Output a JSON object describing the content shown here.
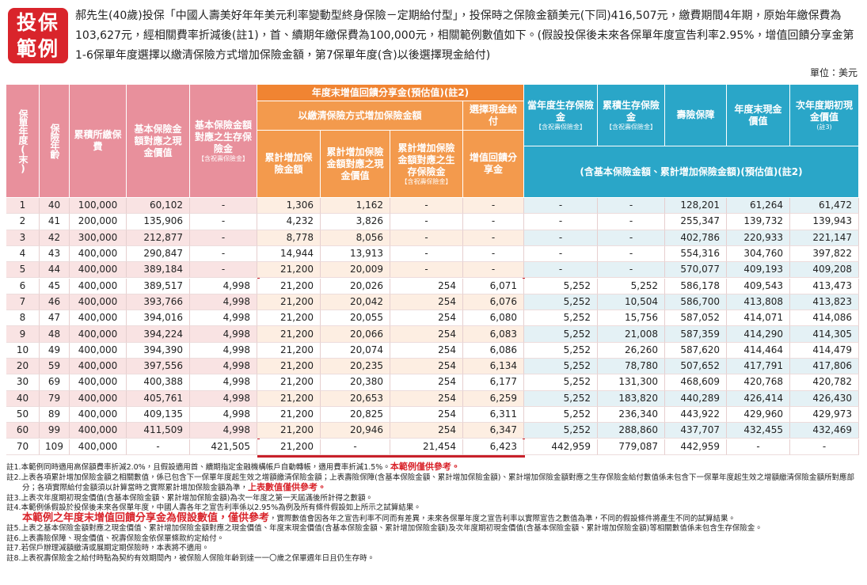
{
  "header": {
    "badge": [
      "投保",
      "範例"
    ],
    "intro": "郝先生(40歲)投保「中國人壽美好年年美元利率變動型終身保險－定期給付型」，投保時之保險金額美元(下同)416,507元，繳費期間4年期，原始年繳保費為103,627元，經相關費率折減後(註1)，首、續期年繳保費為100,000元，相關範例數值如下。(假設投保後未來各保單年度宣告利率2.95%，增值回饋分享金第1-6保單年度選擇以繳清保險方式增加保險金額，第7保單年度(含)以後選擇現金給付)",
    "unit": "單位：美元"
  },
  "table": {
    "group_header": "年度末增值回饋分享金(預估值)(註2)",
    "subgroups": [
      "以繳清保險方式增加保險金額",
      "選擇現金給付"
    ],
    "right_note": "(含基本保險金額、累計增加保險金額)(預估值)(註2)",
    "columns": [
      {
        "label": "保單年度(末)"
      },
      {
        "label": "保險年齡"
      },
      {
        "label": "累積所繳保費"
      },
      {
        "label": "基本保險金額對應之現金價值"
      },
      {
        "label": "基本保險金額對應之生存保險金",
        "note": "【含祝壽保險金】"
      },
      {
        "label": "累計增加保險金額"
      },
      {
        "label": "累計增加保險金額對應之現金價值"
      },
      {
        "label": "累計增加保險金額對應之生存保險金",
        "note": "【含祝壽保險金】"
      },
      {
        "label": "增值回饋分享金"
      },
      {
        "label": "當年度生存保險金",
        "note": "【含祝壽保險金】"
      },
      {
        "label": "累積生存保險金",
        "note": "【含祝壽保險金】"
      },
      {
        "label": "壽險保障"
      },
      {
        "label": "年度末現金價值"
      },
      {
        "label": "次年度期初現金價值",
        "note": "(註3)"
      }
    ],
    "rows": [
      [
        "1",
        "40",
        "100,000",
        "60,102",
        "-",
        "1,306",
        "1,162",
        "-",
        "-",
        "-",
        "-",
        "128,201",
        "61,264",
        "61,472"
      ],
      [
        "2",
        "41",
        "200,000",
        "135,906",
        "-",
        "4,232",
        "3,826",
        "-",
        "-",
        "-",
        "-",
        "255,347",
        "139,732",
        "139,943"
      ],
      [
        "3",
        "42",
        "300,000",
        "212,877",
        "-",
        "8,778",
        "8,056",
        "-",
        "-",
        "-",
        "-",
        "402,786",
        "220,933",
        "221,147"
      ],
      [
        "4",
        "43",
        "400,000",
        "290,847",
        "-",
        "14,944",
        "13,913",
        "-",
        "-",
        "-",
        "-",
        "554,316",
        "304,760",
        "397,822"
      ],
      [
        "5",
        "44",
        "400,000",
        "389,184",
        "-",
        "21,200",
        "20,009",
        "-",
        "-",
        "-",
        "-",
        "570,077",
        "409,193",
        "409,208"
      ],
      [
        "6",
        "45",
        "400,000",
        "389,517",
        "4,998",
        "21,200",
        "20,026",
        "254",
        "6,071",
        "5,252",
        "5,252",
        "586,178",
        "409,543",
        "413,473"
      ],
      [
        "7",
        "46",
        "400,000",
        "393,766",
        "4,998",
        "21,200",
        "20,042",
        "254",
        "6,076",
        "5,252",
        "10,504",
        "586,700",
        "413,808",
        "413,823"
      ],
      [
        "8",
        "47",
        "400,000",
        "394,016",
        "4,998",
        "21,200",
        "20,055",
        "254",
        "6,080",
        "5,252",
        "15,756",
        "587,052",
        "414,071",
        "414,086"
      ],
      [
        "9",
        "48",
        "400,000",
        "394,224",
        "4,998",
        "21,200",
        "20,066",
        "254",
        "6,083",
        "5,252",
        "21,008",
        "587,359",
        "414,290",
        "414,305"
      ],
      [
        "10",
        "49",
        "400,000",
        "394,390",
        "4,998",
        "21,200",
        "20,074",
        "254",
        "6,086",
        "5,252",
        "26,260",
        "587,620",
        "414,464",
        "414,479"
      ],
      [
        "20",
        "59",
        "400,000",
        "397,556",
        "4,998",
        "21,200",
        "20,235",
        "254",
        "6,134",
        "5,252",
        "78,780",
        "507,652",
        "417,791",
        "417,806"
      ],
      [
        "30",
        "69",
        "400,000",
        "400,388",
        "4,998",
        "21,200",
        "20,380",
        "254",
        "6,177",
        "5,252",
        "131,300",
        "468,609",
        "420,768",
        "420,782"
      ],
      [
        "40",
        "79",
        "400,000",
        "405,761",
        "4,998",
        "21,200",
        "20,653",
        "254",
        "6,259",
        "5,252",
        "183,820",
        "440,289",
        "426,414",
        "426,430"
      ],
      [
        "50",
        "89",
        "400,000",
        "409,135",
        "4,998",
        "21,200",
        "20,825",
        "254",
        "6,311",
        "5,252",
        "236,340",
        "443,922",
        "429,960",
        "429,973"
      ],
      [
        "60",
        "99",
        "400,000",
        "411,509",
        "4,998",
        "21,200",
        "20,946",
        "254",
        "6,347",
        "5,252",
        "288,860",
        "437,707",
        "432,455",
        "432,469"
      ],
      [
        "70",
        "109",
        "400,000",
        "-",
        "421,505",
        "21,200",
        "-",
        "21,454",
        "6,423",
        "442,959",
        "779,087",
        "442,959",
        "-",
        "-"
      ]
    ]
  },
  "notes": [
    {
      "text": "註1.本範例同時適用高保額費率折減2.0%，且假設適用首、續期指定金融機構帳戶自動轉帳，適用費率折減1.5%。",
      "highlight": "本範例僅供參考。"
    },
    {
      "text": "註2.上表各項累計增加保險金額之相關數值，係已包含下一保單年度起生效之增額繳清保險金額；上表壽險保障(含基本保險金額、累計增加保險金額)、累計增加保險金額對應之生存保險金給付數值係未包含下一保單年度起生效之增額繳清保險金額所對應部分；各項實際給付金額須以計算當時之實際累計增加保險金額為準，",
      "highlight": "上表數值僅供參考。"
    },
    {
      "text": "註3.上表次年度期初現金價值(含基本保險金額、累計增加保險金額)為次一年度之第一天屆滿後所計得之數額。"
    },
    {
      "text": "註4.本範例係假設於投保後未來各保單年度，中國人壽各年之宣告利率係以2.95%為例及所有條件假設如上所示之試算結果。",
      "highlight": "本範例之年度末增值回饋分享金為假設數值，僅供參考",
      "after": "，實際數值會因各年之宣告利率不同而有差異，未來各保單年度之宣告利率以實際宣告之數值為準，不同的假設條件將產生不同的試算結果。"
    },
    {
      "text": "註5.上表之基本保險金額對應之現金價值、累計增加保險金額對應之現金價值、年度末現金價值(含基本保險金額、累計增加保險金額)及次年度期初現金價值(含基本保險金額、累計增加保險金額)等相關數值係未包含生存保險金。"
    },
    {
      "text": "註6.上表壽險保障、現金價值、祝壽保險金依保單條款約定給付。"
    },
    {
      "text": "註7.若保戶辦理減額繳清或展期定期保險時，本表將不適用。"
    },
    {
      "text": "註8.上表祝壽保險金之給付時點為契約有效期間內，被保險人保險年齡到達一一〇歲之保單週年日且仍生存時。"
    }
  ]
}
